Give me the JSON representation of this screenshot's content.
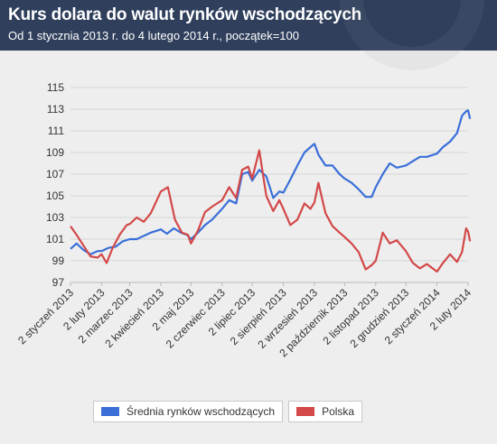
{
  "header": {
    "title": "Kurs dolara do walut rynków wschodzących",
    "subtitle": "Od 1 stycznia 2013 r. do 4 lutego 2014 r., początek=100"
  },
  "colors": {
    "header_bg": "#2f3f5c",
    "series_1": "#3a6fd8",
    "series_2": "#d34848",
    "grid": "#d6d6d6"
  },
  "chart_data": {
    "type": "line",
    "title": "Kurs dolara do walut rynków wschodzących",
    "subtitle": "Od 1 stycznia 2013 r. do 4 lutego 2014 r., początek=100",
    "ylim": [
      97,
      115
    ],
    "yticks": [
      97,
      99,
      101,
      103,
      105,
      107,
      109,
      111,
      113,
      115
    ],
    "grid": true,
    "legend_position": "bottom",
    "x": [
      "2 styczeń 2013",
      "2 luty 2013",
      "2 marzec 2013",
      "2 kwiecień 2013",
      "2 maj 2013",
      "2 czerwiec 2013",
      "2 lipiec 2013",
      "2 sierpień 2013",
      "2 wrzesień 2013",
      "2 październik 2013",
      "2 listopad 2013",
      "2 grudzień 2013",
      "2 styczeń 2014",
      "2 luty 2014"
    ],
    "series": [
      {
        "name": "Średnia rynków wschodzących",
        "color": "#3a6fd8",
        "points": [
          [
            "2013-01-02",
            100.1
          ],
          [
            "2013-01-08",
            100.6
          ],
          [
            "2013-01-15",
            100.0
          ],
          [
            "2013-01-22",
            99.6
          ],
          [
            "2013-01-29",
            99.9
          ],
          [
            "2013-02-02",
            99.9
          ],
          [
            "2013-02-09",
            100.2
          ],
          [
            "2013-02-16",
            100.3
          ],
          [
            "2013-02-23",
            100.8
          ],
          [
            "2013-03-02",
            101.0
          ],
          [
            "2013-03-09",
            101.0
          ],
          [
            "2013-03-16",
            101.3
          ],
          [
            "2013-03-23",
            101.6
          ],
          [
            "2013-04-02",
            101.9
          ],
          [
            "2013-04-08",
            101.5
          ],
          [
            "2013-04-15",
            102.0
          ],
          [
            "2013-04-22",
            101.6
          ],
          [
            "2013-04-28",
            101.4
          ],
          [
            "2013-05-02",
            101.0
          ],
          [
            "2013-05-09",
            101.6
          ],
          [
            "2013-05-16",
            102.3
          ],
          [
            "2013-05-23",
            102.8
          ],
          [
            "2013-06-02",
            103.8
          ],
          [
            "2013-06-09",
            104.6
          ],
          [
            "2013-06-16",
            104.3
          ],
          [
            "2013-06-22",
            107.0
          ],
          [
            "2013-06-28",
            107.2
          ],
          [
            "2013-07-02",
            106.4
          ],
          [
            "2013-07-09",
            107.4
          ],
          [
            "2013-07-16",
            106.8
          ],
          [
            "2013-07-23",
            104.8
          ],
          [
            "2013-07-29",
            105.4
          ],
          [
            "2013-08-02",
            105.3
          ],
          [
            "2013-08-09",
            106.5
          ],
          [
            "2013-08-16",
            107.8
          ],
          [
            "2013-08-23",
            109.0
          ],
          [
            "2013-08-29",
            109.5
          ],
          [
            "2013-09-02",
            109.8
          ],
          [
            "2013-09-06",
            108.8
          ],
          [
            "2013-09-13",
            107.8
          ],
          [
            "2013-09-20",
            107.8
          ],
          [
            "2013-09-27",
            107.0
          ],
          [
            "2013-10-02",
            106.6
          ],
          [
            "2013-10-09",
            106.2
          ],
          [
            "2013-10-16",
            105.6
          ],
          [
            "2013-10-23",
            104.9
          ],
          [
            "2013-10-29",
            104.9
          ],
          [
            "2013-11-02",
            105.8
          ],
          [
            "2013-11-09",
            107.0
          ],
          [
            "2013-11-16",
            108.0
          ],
          [
            "2013-11-23",
            107.6
          ],
          [
            "2013-12-02",
            107.8
          ],
          [
            "2013-12-09",
            108.2
          ],
          [
            "2013-12-16",
            108.6
          ],
          [
            "2013-12-23",
            108.6
          ],
          [
            "2014-01-02",
            108.9
          ],
          [
            "2014-01-08",
            109.5
          ],
          [
            "2014-01-15",
            110.0
          ],
          [
            "2014-01-22",
            110.8
          ],
          [
            "2014-01-27",
            112.4
          ],
          [
            "2014-01-31",
            112.8
          ],
          [
            "2014-02-02",
            112.9
          ],
          [
            "2014-02-04",
            112.1
          ]
        ]
      },
      {
        "name": "Polska",
        "color": "#d34848",
        "points": [
          [
            "2013-01-02",
            102.2
          ],
          [
            "2013-01-08",
            101.4
          ],
          [
            "2013-01-15",
            100.4
          ],
          [
            "2013-01-22",
            99.4
          ],
          [
            "2013-01-29",
            99.3
          ],
          [
            "2013-02-02",
            99.6
          ],
          [
            "2013-02-07",
            98.8
          ],
          [
            "2013-02-13",
            100.2
          ],
          [
            "2013-02-20",
            101.4
          ],
          [
            "2013-02-27",
            102.3
          ],
          [
            "2013-03-02",
            102.4
          ],
          [
            "2013-03-09",
            103.0
          ],
          [
            "2013-03-16",
            102.6
          ],
          [
            "2013-03-23",
            103.4
          ],
          [
            "2013-04-02",
            105.4
          ],
          [
            "2013-04-09",
            105.8
          ],
          [
            "2013-04-16",
            102.8
          ],
          [
            "2013-04-23",
            101.6
          ],
          [
            "2013-04-29",
            101.4
          ],
          [
            "2013-05-02",
            100.6
          ],
          [
            "2013-05-09",
            101.8
          ],
          [
            "2013-05-16",
            103.5
          ],
          [
            "2013-05-23",
            104.0
          ],
          [
            "2013-06-02",
            104.6
          ],
          [
            "2013-06-09",
            105.8
          ],
          [
            "2013-06-16",
            104.8
          ],
          [
            "2013-06-22",
            107.4
          ],
          [
            "2013-06-28",
            107.7
          ],
          [
            "2013-07-02",
            106.6
          ],
          [
            "2013-07-09",
            109.2
          ],
          [
            "2013-07-16",
            105.0
          ],
          [
            "2013-07-23",
            103.6
          ],
          [
            "2013-07-29",
            104.6
          ],
          [
            "2013-08-02",
            103.8
          ],
          [
            "2013-08-09",
            102.3
          ],
          [
            "2013-08-16",
            102.8
          ],
          [
            "2013-08-23",
            104.3
          ],
          [
            "2013-08-29",
            103.8
          ],
          [
            "2013-09-02",
            104.4
          ],
          [
            "2013-09-06",
            106.2
          ],
          [
            "2013-09-13",
            103.4
          ],
          [
            "2013-09-20",
            102.2
          ],
          [
            "2013-09-27",
            101.6
          ],
          [
            "2013-10-02",
            101.2
          ],
          [
            "2013-10-09",
            100.6
          ],
          [
            "2013-10-16",
            99.8
          ],
          [
            "2013-10-23",
            98.2
          ],
          [
            "2013-10-29",
            98.6
          ],
          [
            "2013-11-02",
            99.0
          ],
          [
            "2013-11-09",
            101.6
          ],
          [
            "2013-11-16",
            100.6
          ],
          [
            "2013-11-23",
            100.9
          ],
          [
            "2013-12-02",
            99.9
          ],
          [
            "2013-12-09",
            98.8
          ],
          [
            "2013-12-16",
            98.3
          ],
          [
            "2013-12-23",
            98.7
          ],
          [
            "2014-01-02",
            98.0
          ],
          [
            "2014-01-08",
            98.8
          ],
          [
            "2014-01-15",
            99.6
          ],
          [
            "2014-01-22",
            98.9
          ],
          [
            "2014-01-27",
            99.8
          ],
          [
            "2014-01-31",
            102.0
          ],
          [
            "2014-02-02",
            101.7
          ],
          [
            "2014-02-04",
            100.8
          ]
        ]
      }
    ]
  }
}
